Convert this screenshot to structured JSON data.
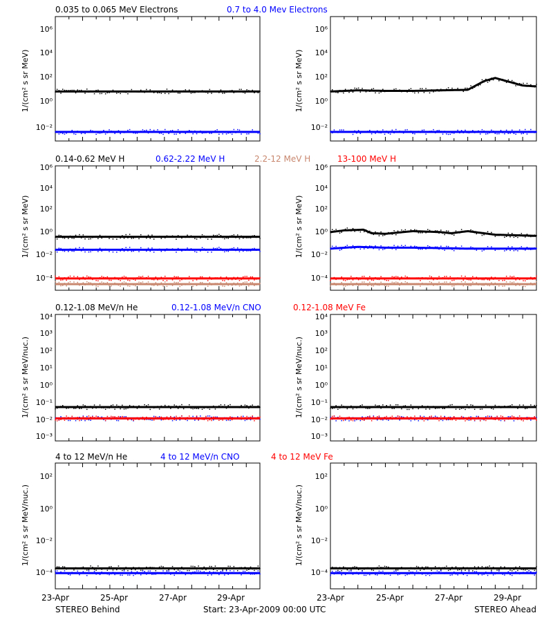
{
  "rows": [
    {
      "labels": [
        {
          "text": "0.035 to 0.065 MeV Electrons",
          "color": "#000000"
        },
        {
          "text": "0.7 to 4.0 Mev Electrons",
          "color": "#0000ff"
        }
      ],
      "ylabel": "1/(cm² s sr MeV)",
      "yticks": [
        "10⁶",
        "10⁴",
        "10²",
        "10⁰",
        "10⁻²"
      ]
    },
    {
      "labels": [
        {
          "text": "0.14-0.62 MeV H",
          "color": "#000000"
        },
        {
          "text": "0.62-2.22 MeV H",
          "color": "#0000ff"
        },
        {
          "text": "2.2-12 MeV H",
          "color": "#c8876e"
        },
        {
          "text": "13-100 MeV H",
          "color": "#ff0000"
        }
      ],
      "ylabel": "1/(cm² s sr MeV)",
      "yticks": [
        "10⁶",
        "10⁴",
        "10²",
        "10⁰",
        "10⁻²",
        "10⁻⁴"
      ]
    },
    {
      "labels": [
        {
          "text": "0.12-1.08 MeV/n He",
          "color": "#000000"
        },
        {
          "text": "0.12-1.08 MeV/n CNO",
          "color": "#0000ff"
        },
        {
          "text": "0.12-1.08 MeV Fe",
          "color": "#ff0000"
        }
      ],
      "ylabel": "1/(cm² s sr MeV/nuc.)",
      "yticks": [
        "10⁴",
        "10³",
        "10²",
        "10¹",
        "10⁰",
        "10⁻¹",
        "10⁻²",
        "10⁻³"
      ]
    },
    {
      "labels": [
        {
          "text": "4 to 12 MeV/n He",
          "color": "#000000"
        },
        {
          "text": "4 to 12 MeV/n CNO",
          "color": "#0000ff"
        },
        {
          "text": "4 to 12 MeV Fe",
          "color": "#ff0000"
        }
      ],
      "ylabel": "1/(cm² s sr MeV/nuc.)",
      "yticks": [
        "10²",
        "10⁰",
        "10⁻²",
        "10⁻⁴"
      ]
    }
  ],
  "xticks": [
    "23-Apr",
    "25-Apr",
    "27-Apr",
    "29-Apr"
  ],
  "footer": {
    "left": "STEREO Behind",
    "center": "Start: 23-Apr-2009 00:00 UTC",
    "right": "STEREO Ahead"
  },
  "chart_data": [
    {
      "type": "scatter",
      "panel": "electrons-behind",
      "yscale": "log",
      "ylim": [
        0.005,
        1000000
      ],
      "x_days": [
        0,
        7.5
      ],
      "series": [
        {
          "name": "0.035 to 0.065 MeV Electrons",
          "color": "#000000",
          "x": [
            0,
            1,
            2,
            3,
            4,
            5,
            6,
            7,
            7.5
          ],
          "y": [
            10,
            10,
            10,
            10,
            10,
            10,
            10,
            10,
            10
          ]
        },
        {
          "name": "0.7 to 4.0 Mev Electrons",
          "color": "#0000ff",
          "x": [
            0,
            1,
            2,
            3,
            4,
            5,
            6,
            7,
            7.5
          ],
          "y": [
            0.02,
            0.02,
            0.02,
            0.02,
            0.02,
            0.02,
            0.02,
            0.02,
            0.02
          ]
        }
      ]
    },
    {
      "type": "scatter",
      "panel": "electrons-ahead",
      "yscale": "log",
      "ylim": [
        0.005,
        1000000
      ],
      "x_days": [
        0,
        7.5
      ],
      "series": [
        {
          "name": "0.035 to 0.065 MeV Electrons",
          "color": "#000000",
          "x": [
            0,
            1,
            2,
            3,
            4,
            5,
            5.6,
            6,
            6.6,
            7,
            7.5
          ],
          "y": [
            10,
            12,
            11,
            11,
            12,
            13,
            50,
            80,
            40,
            25,
            22
          ]
        },
        {
          "name": "0.7 to 4.0 Mev Electrons",
          "color": "#0000ff",
          "x": [
            0,
            1,
            2,
            3,
            4,
            5,
            6,
            7,
            7.5
          ],
          "y": [
            0.02,
            0.02,
            0.02,
            0.02,
            0.02,
            0.02,
            0.02,
            0.02,
            0.02
          ]
        }
      ]
    },
    {
      "type": "scatter",
      "panel": "protons-behind",
      "yscale": "log",
      "ylim": [
        3e-05,
        1000000
      ],
      "x_days": [
        0,
        7.5
      ],
      "series": [
        {
          "name": "0.14-0.62 MeV H",
          "color": "#000000",
          "x": [
            0,
            1,
            2,
            3,
            4,
            5,
            6,
            7,
            7.5
          ],
          "y": [
            1,
            1,
            1,
            1,
            1,
            1,
            1,
            1,
            1
          ]
        },
        {
          "name": "0.62-2.22 MeV H",
          "color": "#0000ff",
          "x": [
            0,
            1,
            2,
            3,
            4,
            5,
            6,
            7,
            7.5
          ],
          "y": [
            0.08,
            0.08,
            0.08,
            0.08,
            0.08,
            0.08,
            0.08,
            0.08,
            0.08
          ]
        },
        {
          "name": "2.2-12 MeV H",
          "color": "#c8876e",
          "x": [
            0,
            1,
            2,
            3,
            4,
            5,
            6,
            7,
            7.5
          ],
          "y": [
            0.0001,
            0.0001,
            0.0001,
            0.0001,
            0.0001,
            0.0001,
            0.0001,
            0.0001,
            0.0001
          ]
        },
        {
          "name": "13-100 MeV H",
          "color": "#ff0000",
          "x": [
            0,
            1,
            2,
            3,
            4,
            5,
            6,
            7,
            7.5
          ],
          "y": [
            0.0003,
            0.0003,
            0.0003,
            0.0003,
            0.0003,
            0.0003,
            0.0003,
            0.0003,
            0.0003
          ]
        }
      ]
    },
    {
      "type": "scatter",
      "panel": "protons-ahead",
      "yscale": "log",
      "ylim": [
        3e-05,
        1000000
      ],
      "x_days": [
        0,
        7.5
      ],
      "series": [
        {
          "name": "0.14-0.62 MeV H",
          "color": "#000000",
          "x": [
            0,
            0.5,
            1.2,
            1.5,
            2,
            3,
            4,
            4.4,
            5,
            6,
            7,
            7.5
          ],
          "y": [
            2.5,
            3.5,
            4,
            2,
            1.8,
            3,
            2.5,
            2,
            3,
            1.5,
            1.3,
            1.2
          ]
        },
        {
          "name": "0.62-2.22 MeV H",
          "color": "#0000ff",
          "x": [
            0,
            1,
            2,
            3,
            4,
            5,
            6,
            7,
            7.5
          ],
          "y": [
            0.1,
            0.14,
            0.12,
            0.12,
            0.11,
            0.1,
            0.1,
            0.1,
            0.1
          ]
        },
        {
          "name": "2.2-12 MeV H",
          "color": "#c8876e",
          "x": [
            0,
            1,
            2,
            3,
            4,
            5,
            6,
            7,
            7.5
          ],
          "y": [
            0.0001,
            0.0001,
            0.0001,
            0.0001,
            0.0001,
            0.0001,
            0.0001,
            0.0001,
            0.0001
          ]
        },
        {
          "name": "13-100 MeV H",
          "color": "#ff0000",
          "x": [
            0,
            1,
            2,
            3,
            4,
            5,
            6,
            7,
            7.5
          ],
          "y": [
            0.0003,
            0.0003,
            0.0003,
            0.0003,
            0.0003,
            0.0003,
            0.0003,
            0.0003,
            0.0003
          ]
        }
      ]
    },
    {
      "type": "scatter",
      "panel": "suprathermal-behind",
      "yscale": "log",
      "ylim": [
        0.0005,
        10000
      ],
      "x_days": [
        0,
        7.5
      ],
      "series": [
        {
          "name": "0.12-1.08 MeV/n He",
          "color": "#000000",
          "x": [
            0,
            1,
            2,
            3,
            4,
            5,
            6,
            7,
            7.5
          ],
          "y": [
            0.045,
            0.045,
            0.045,
            0.045,
            0.045,
            0.045,
            0.045,
            0.045,
            0.045
          ]
        },
        {
          "name": "0.12-1.08 MeV/n CNO",
          "color": "#0000ff",
          "x": [
            0,
            1,
            2,
            3,
            4,
            5,
            6,
            7,
            7.5
          ],
          "y": [
            0.01,
            0.01,
            0.01,
            0.01,
            0.01,
            0.01,
            0.01,
            0.01,
            0.01
          ]
        },
        {
          "name": "0.12-1.08 MeV Fe",
          "color": "#ff0000",
          "x": [
            0,
            1,
            2,
            3,
            4,
            5,
            6,
            7,
            7.5
          ],
          "y": [
            0.01,
            0.01,
            0.01,
            0.01,
            0.01,
            0.01,
            0.01,
            0.01,
            0.01
          ]
        }
      ]
    },
    {
      "type": "scatter",
      "panel": "suprathermal-ahead",
      "yscale": "log",
      "ylim": [
        0.0005,
        10000
      ],
      "x_days": [
        0,
        7.5
      ],
      "series": [
        {
          "name": "0.12-1.08 MeV/n He",
          "color": "#000000",
          "x": [
            0,
            1,
            2,
            3,
            4,
            5,
            6,
            7,
            7.5
          ],
          "y": [
            0.045,
            0.045,
            0.045,
            0.045,
            0.045,
            0.045,
            0.045,
            0.045,
            0.045
          ]
        },
        {
          "name": "0.12-1.08 MeV/n CNO",
          "color": "#0000ff",
          "x": [
            0,
            1,
            2,
            3,
            4,
            5,
            6,
            7,
            7.5
          ],
          "y": [
            0.01,
            0.01,
            0.01,
            0.01,
            0.01,
            0.01,
            0.01,
            0.01,
            0.01
          ]
        },
        {
          "name": "0.12-1.08 MeV Fe",
          "color": "#ff0000",
          "x": [
            0,
            1,
            2,
            3,
            4,
            5,
            6,
            7,
            7.5
          ],
          "y": [
            0.01,
            0.01,
            0.01,
            0.01,
            0.01,
            0.01,
            0.01,
            0.01,
            0.01
          ]
        }
      ]
    },
    {
      "type": "scatter",
      "panel": "energetic-behind",
      "yscale": "log",
      "ylim": [
        1e-05,
        1000
      ],
      "x_days": [
        0,
        7.5
      ],
      "series": [
        {
          "name": "4 to 12 MeV/n He",
          "color": "#000000",
          "x": [
            0,
            1,
            2,
            3,
            4,
            5,
            6,
            7,
            7.5
          ],
          "y": [
            0.0002,
            0.0002,
            0.0002,
            0.0002,
            0.0002,
            0.0002,
            0.0002,
            0.0002,
            0.0002
          ]
        },
        {
          "name": "4 to 12 MeV/n CNO",
          "color": "#0000ff",
          "x": [
            0,
            1,
            2,
            3,
            4,
            5,
            6,
            7,
            7.5
          ],
          "y": [
            0.0001,
            0.0001,
            0.0001,
            0.0001,
            0.0001,
            0.0001,
            0.0001,
            0.0001,
            0.0001
          ]
        },
        {
          "name": "4 to 12 MeV Fe",
          "color": "#ff0000",
          "x": [],
          "y": []
        }
      ]
    },
    {
      "type": "scatter",
      "panel": "energetic-ahead",
      "yscale": "log",
      "ylim": [
        1e-05,
        1000
      ],
      "x_days": [
        0,
        7.5
      ],
      "series": [
        {
          "name": "4 to 12 MeV/n He",
          "color": "#000000",
          "x": [
            0,
            1,
            2,
            3,
            4,
            5,
            6,
            7,
            7.5
          ],
          "y": [
            0.0002,
            0.0002,
            0.0002,
            0.0002,
            0.0002,
            0.0002,
            0.0002,
            0.0002,
            0.0002
          ]
        },
        {
          "name": "4 to 12 MeV/n CNO",
          "color": "#0000ff",
          "x": [
            0,
            1,
            2,
            3,
            4,
            5,
            6,
            7,
            7.5
          ],
          "y": [
            0.0001,
            0.0001,
            0.0001,
            0.0001,
            0.0001,
            0.0001,
            0.0001,
            0.0001,
            0.0001
          ]
        },
        {
          "name": "4 to 12 MeV Fe",
          "color": "#ff0000",
          "x": [],
          "y": []
        }
      ]
    }
  ]
}
